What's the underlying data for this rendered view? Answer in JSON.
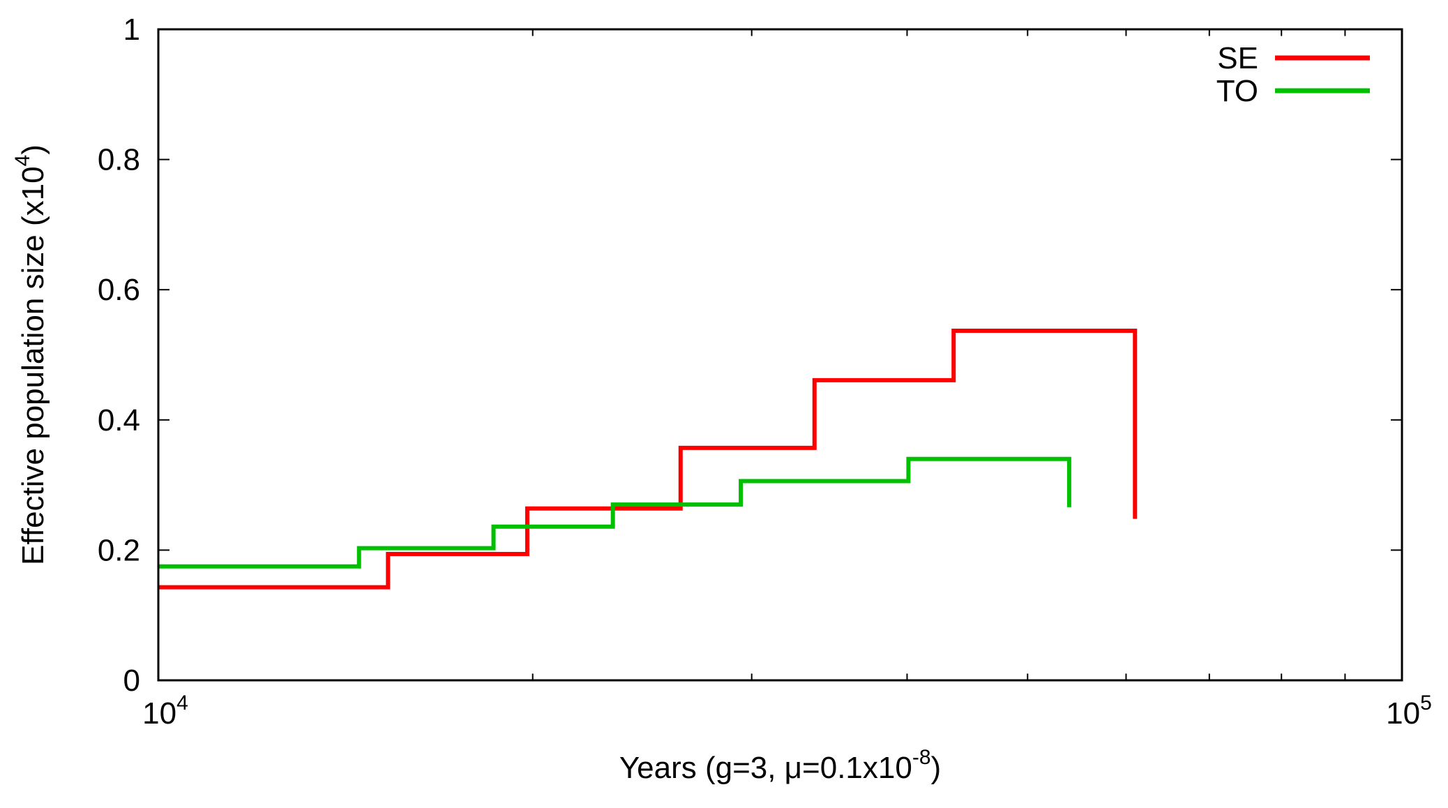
{
  "chart_data": {
    "type": "line",
    "step": true,
    "xscale": "log",
    "xlim": [
      10000,
      100000
    ],
    "ylim": [
      0,
      1
    ],
    "grid": false,
    "legend_position": "top-right",
    "xlabel": {
      "main": "Years (g=3, μ=0.1x10",
      "sup": "-8",
      "end": ")"
    },
    "ylabel": {
      "main": "Effective population size (x10",
      "sup": "4",
      "end": ")"
    },
    "xticks": [
      {
        "value": 10000,
        "base": "10",
        "exp": "4"
      },
      {
        "value": 100000,
        "base": "10",
        "exp": "5"
      }
    ],
    "yticks": [
      {
        "value": 0,
        "label": "0"
      },
      {
        "value": 0.2,
        "label": "0.2"
      },
      {
        "value": 0.4,
        "label": "0.4"
      },
      {
        "value": 0.6,
        "label": "0.6"
      },
      {
        "value": 0.8,
        "label": "0.8"
      },
      {
        "value": 1,
        "label": "1"
      }
    ],
    "series": [
      {
        "name": "SE",
        "color": "#ff0000",
        "x": [
          10000,
          12150,
          15300,
          19800,
          26300,
          33700,
          43600,
          61000
        ],
        "y": [
          0.143,
          0.143,
          0.194,
          0.264,
          0.357,
          0.461,
          0.537,
          0.248
        ]
      },
      {
        "name": "TO",
        "color": "#00c000",
        "x": [
          10000,
          11600,
          14500,
          18600,
          23200,
          29400,
          40100,
          54000
        ],
        "y": [
          0.175,
          0.175,
          0.203,
          0.236,
          0.27,
          0.306,
          0.34,
          0.266
        ]
      }
    ]
  }
}
